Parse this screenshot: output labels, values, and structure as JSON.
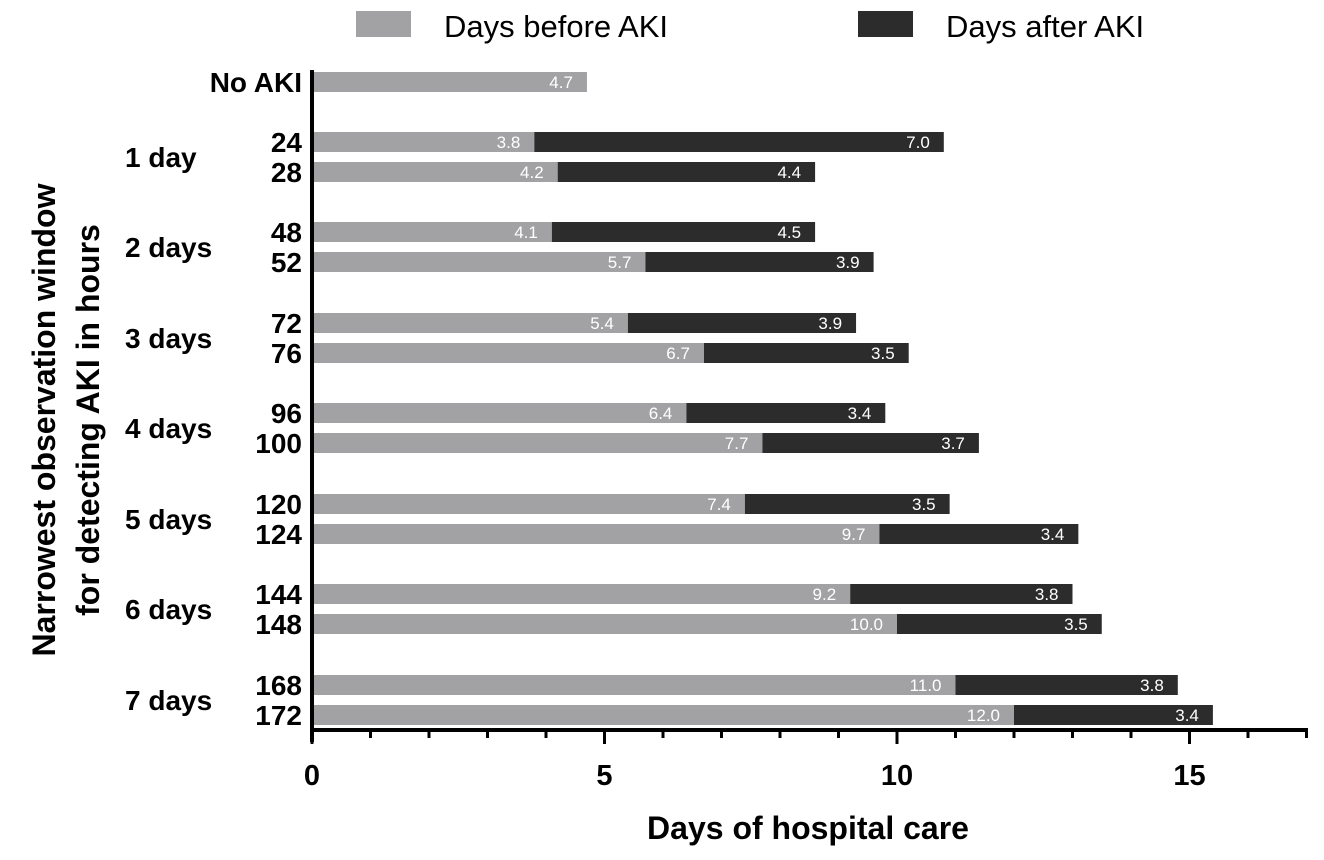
{
  "chart_data": {
    "type": "bar",
    "orientation": "horizontal",
    "stacked": true,
    "xlabel": "Days of hospital care",
    "ylabel_lines": [
      "Narrowest observation window",
      "for detecting  AKI in hours"
    ],
    "xlim": [
      0,
      17
    ],
    "xticks": [
      0,
      5,
      10,
      15
    ],
    "legend": {
      "placement": "top"
    },
    "grid": false,
    "series": [
      {
        "name": "Days before AKI",
        "color": "#a2a2a4"
      },
      {
        "name": "Days after AKI",
        "color": "#2c2c2c"
      }
    ],
    "groups": [
      {
        "label": "No AKI",
        "rows": [
          {
            "label": "",
            "before": 4.7,
            "after": null
          }
        ]
      },
      {
        "label": "1 day",
        "rows": [
          {
            "label": "24",
            "before": 3.8,
            "after": 7.0
          },
          {
            "label": "28",
            "before": 4.2,
            "after": 4.4
          }
        ]
      },
      {
        "label": "2 days",
        "rows": [
          {
            "label": "48",
            "before": 4.1,
            "after": 4.5
          },
          {
            "label": "52",
            "before": 5.7,
            "after": 3.9
          }
        ]
      },
      {
        "label": "3 days",
        "rows": [
          {
            "label": "72",
            "before": 5.4,
            "after": 3.9
          },
          {
            "label": "76",
            "before": 6.7,
            "after": 3.5
          }
        ]
      },
      {
        "label": "4 days",
        "rows": [
          {
            "label": "96",
            "before": 6.4,
            "after": 3.4
          },
          {
            "label": "100",
            "before": 7.7,
            "after": 3.7
          }
        ]
      },
      {
        "label": "5 days",
        "rows": [
          {
            "label": "120",
            "before": 7.4,
            "after": 3.5
          },
          {
            "label": "124",
            "before": 9.7,
            "after": 3.4
          }
        ]
      },
      {
        "label": "6 days",
        "rows": [
          {
            "label": "144",
            "before": 9.2,
            "after": 3.8
          },
          {
            "label": "148",
            "before": 10.0,
            "after": 3.5
          }
        ]
      },
      {
        "label": "7 days",
        "rows": [
          {
            "label": "168",
            "before": 11.0,
            "after": 3.8
          },
          {
            "label": "172",
            "before": 12.0,
            "after": 3.4
          }
        ]
      }
    ]
  }
}
